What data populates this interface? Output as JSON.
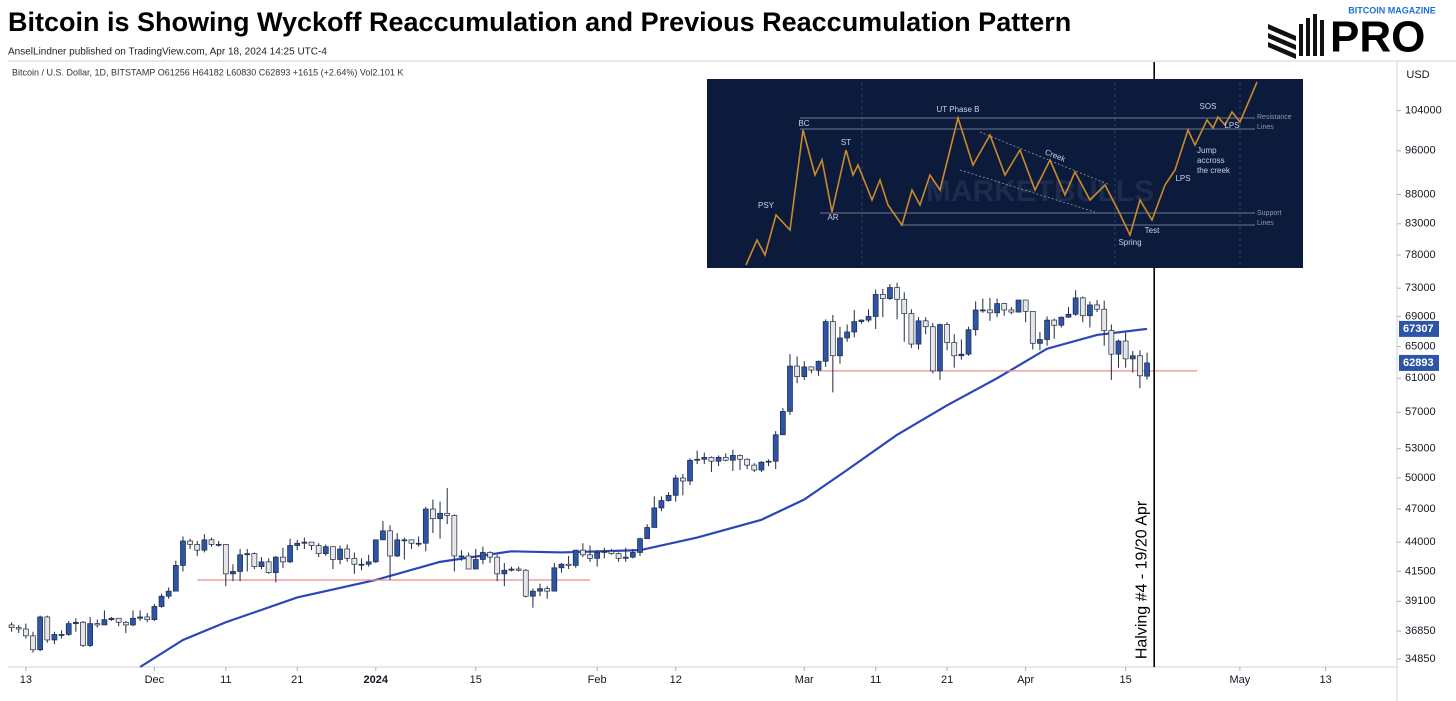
{
  "chart_data": {
    "type": "candlestick",
    "title": "Bitcoin is Showing Wyckoff Reaccumulation and Previous Reaccumulation Pattern",
    "subtitle": "AnselLindner published on TradingView.com, Apr 18, 2024 14:25 UTC-4",
    "symbol_info": "Bitcoin / U.S. Dollar, 1D, BITSTAMP  O61256  H64182  L60830  C62893  +1615 (+2.64%)  Vol2.101 K",
    "currency": "USD",
    "logo": {
      "top": "BITCOIN MAGAZINE",
      "main": "PRO"
    },
    "log_scale": true,
    "grid": false,
    "up_color": "#2e54a6",
    "down_color": "#e6e6e6",
    "ylim": [
      34300,
      114600
    ],
    "yticks": [
      34850,
      36850,
      39100,
      41500,
      44000,
      47000,
      50000,
      53000,
      57000,
      61000,
      65000,
      69000,
      73000,
      78000,
      83000,
      88000,
      96000,
      104000
    ],
    "xlim": [
      -0.5,
      194
    ],
    "xticks": [
      {
        "value": 2,
        "label": "13"
      },
      {
        "value": 20,
        "label": "Dec"
      },
      {
        "value": 30,
        "label": "11"
      },
      {
        "value": 40,
        "label": "21"
      },
      {
        "value": 51,
        "label": "2024"
      },
      {
        "value": 65,
        "label": "15"
      },
      {
        "value": 82,
        "label": "Feb"
      },
      {
        "value": 93,
        "label": "12"
      },
      {
        "value": 111,
        "label": "Mar"
      },
      {
        "value": 121,
        "label": "11"
      },
      {
        "value": 131,
        "label": "21"
      },
      {
        "value": 142,
        "label": "Apr"
      },
      {
        "value": 156,
        "label": "15"
      },
      {
        "value": 172,
        "label": "May"
      },
      {
        "value": 184,
        "label": "13"
      }
    ],
    "ohlc": [
      [
        37300,
        37500,
        36800,
        37100
      ],
      [
        37100,
        37300,
        36700,
        37000
      ],
      [
        37000,
        37400,
        36300,
        36500
      ],
      [
        36500,
        36800,
        35300,
        35500
      ],
      [
        35500,
        38000,
        35400,
        37900
      ],
      [
        37900,
        38000,
        36000,
        36200
      ],
      [
        36200,
        36800,
        35900,
        36600
      ],
      [
        36600,
        36900,
        36300,
        36600
      ],
      [
        36600,
        37600,
        36500,
        37400
      ],
      [
        37400,
        37800,
        36800,
        37500
      ],
      [
        37500,
        37600,
        35700,
        35800
      ],
      [
        35800,
        37900,
        35700,
        37400
      ],
      [
        37400,
        37700,
        37100,
        37300
      ],
      [
        37300,
        38400,
        37300,
        37700
      ],
      [
        37700,
        37900,
        37600,
        37800
      ],
      [
        37800,
        37800,
        37200,
        37500
      ],
      [
        37500,
        37600,
        36700,
        37300
      ],
      [
        37300,
        38400,
        37200,
        37800
      ],
      [
        37800,
        38400,
        37600,
        37900
      ],
      [
        37900,
        38200,
        37500,
        37700
      ],
      [
        37700,
        38900,
        37600,
        38700
      ],
      [
        38700,
        39700,
        38600,
        39500
      ],
      [
        39500,
        40200,
        39300,
        39900
      ],
      [
        39900,
        42400,
        39900,
        42000
      ],
      [
        42000,
        44500,
        41500,
        44100
      ],
      [
        44100,
        44300,
        43400,
        43800
      ],
      [
        43800,
        44100,
        42800,
        43300
      ],
      [
        43300,
        44700,
        43100,
        44200
      ],
      [
        44200,
        44400,
        43600,
        43800
      ],
      [
        43800,
        44100,
        43600,
        43800
      ],
      [
        43800,
        43800,
        40300,
        41300
      ],
      [
        41300,
        42100,
        40700,
        41500
      ],
      [
        41500,
        43400,
        40700,
        42900
      ],
      [
        42900,
        43400,
        41500,
        43000
      ],
      [
        43000,
        43100,
        41700,
        41900
      ],
      [
        41900,
        42700,
        41700,
        42300
      ],
      [
        42300,
        42600,
        41300,
        41400
      ],
      [
        41400,
        42800,
        40600,
        42700
      ],
      [
        42700,
        43500,
        41800,
        42300
      ],
      [
        42300,
        44300,
        42200,
        43700
      ],
      [
        43700,
        44200,
        43300,
        43900
      ],
      [
        43900,
        44400,
        43400,
        44000
      ],
      [
        44000,
        44000,
        43300,
        43700
      ],
      [
        43700,
        43900,
        42700,
        43000
      ],
      [
        43000,
        43800,
        42800,
        43600
      ],
      [
        43600,
        43600,
        41700,
        42500
      ],
      [
        42500,
        43700,
        42100,
        43400
      ],
      [
        43400,
        43800,
        42300,
        42600
      ],
      [
        42600,
        43100,
        41300,
        42100
      ],
      [
        42100,
        42600,
        41600,
        42100
      ],
      [
        42100,
        42900,
        41900,
        42300
      ],
      [
        42300,
        44200,
        42200,
        44200
      ],
      [
        44200,
        45900,
        44200,
        45000
      ],
      [
        45000,
        45500,
        40800,
        42800
      ],
      [
        42800,
        44800,
        42700,
        44200
      ],
      [
        44200,
        44400,
        42500,
        44200
      ],
      [
        44200,
        44200,
        43400,
        43900
      ],
      [
        43900,
        44500,
        43600,
        43900
      ],
      [
        43900,
        47200,
        43200,
        47000
      ],
      [
        47000,
        47900,
        44800,
        46100
      ],
      [
        46100,
        47700,
        44300,
        46600
      ],
      [
        46600,
        49000,
        45600,
        46400
      ],
      [
        46400,
        46500,
        41500,
        42800
      ],
      [
        42800,
        43300,
        42400,
        42800
      ],
      [
        42800,
        43100,
        41700,
        41700
      ],
      [
        41700,
        43400,
        41700,
        42500
      ],
      [
        42500,
        43600,
        42100,
        43100
      ],
      [
        43100,
        43200,
        42200,
        42700
      ],
      [
        42700,
        42900,
        40700,
        41300
      ],
      [
        41300,
        42200,
        40300,
        41600
      ],
      [
        41600,
        41900,
        41500,
        41700
      ],
      [
        41700,
        41900,
        41500,
        41600
      ],
      [
        41600,
        41700,
        39400,
        39500
      ],
      [
        39500,
        40100,
        38600,
        39900
      ],
      [
        39900,
        40500,
        39500,
        40100
      ],
      [
        40100,
        40300,
        39300,
        39900
      ],
      [
        39900,
        42200,
        39900,
        41800
      ],
      [
        41800,
        42200,
        41400,
        42100
      ],
      [
        42100,
        42800,
        41700,
        42000
      ],
      [
        42000,
        43300,
        41800,
        43300
      ],
      [
        43300,
        43900,
        42700,
        42900
      ],
      [
        42900,
        43700,
        42300,
        42600
      ],
      [
        42600,
        43300,
        41900,
        43100
      ],
      [
        43100,
        43500,
        42600,
        43200
      ],
      [
        43200,
        43400,
        42900,
        43000
      ],
      [
        43000,
        43100,
        42300,
        42600
      ],
      [
        42600,
        43500,
        42300,
        42700
      ],
      [
        42700,
        43400,
        42600,
        43100
      ],
      [
        43100,
        44400,
        42800,
        44300
      ],
      [
        44300,
        45600,
        44300,
        45300
      ],
      [
        45300,
        48200,
        45300,
        47100
      ],
      [
        47100,
        48200,
        46800,
        47800
      ],
      [
        47800,
        48600,
        47700,
        48300
      ],
      [
        48300,
        50300,
        47700,
        50000
      ],
      [
        50000,
        50400,
        48300,
        49700
      ],
      [
        49700,
        52000,
        49300,
        51800
      ],
      [
        51800,
        52800,
        51400,
        51900
      ],
      [
        51900,
        52600,
        51400,
        52100
      ],
      [
        52100,
        52200,
        50600,
        51700
      ],
      [
        51700,
        52300,
        51200,
        52100
      ],
      [
        52100,
        52500,
        51700,
        51800
      ],
      [
        51800,
        52900,
        50700,
        52300
      ],
      [
        52300,
        52400,
        50800,
        51900
      ],
      [
        51900,
        52000,
        50900,
        51300
      ],
      [
        51300,
        51500,
        50600,
        50800
      ],
      [
        50800,
        51700,
        50600,
        51600
      ],
      [
        51600,
        51900,
        51200,
        51700
      ],
      [
        51700,
        54900,
        50900,
        54500
      ],
      [
        54500,
        57500,
        54500,
        57100
      ],
      [
        57100,
        64000,
        56700,
        62500
      ],
      [
        62500,
        63700,
        60400,
        61200
      ],
      [
        61200,
        63100,
        60800,
        62400
      ],
      [
        62400,
        62400,
        61600,
        62000
      ],
      [
        62000,
        63200,
        61300,
        63100
      ],
      [
        63100,
        68600,
        62400,
        68300
      ],
      [
        68300,
        69200,
        59300,
        63800
      ],
      [
        63800,
        67600,
        62800,
        66100
      ],
      [
        66100,
        67900,
        65600,
        66900
      ],
      [
        66900,
        69900,
        66200,
        68300
      ],
      [
        68300,
        68600,
        68000,
        68500
      ],
      [
        68500,
        70000,
        68200,
        69000
      ],
      [
        69000,
        72800,
        67300,
        72100
      ],
      [
        72100,
        72900,
        68900,
        71500
      ],
      [
        71500,
        73600,
        71300,
        73100
      ],
      [
        73100,
        73800,
        68600,
        71400
      ],
      [
        71400,
        72400,
        65600,
        69400
      ],
      [
        69400,
        70000,
        64800,
        65300
      ],
      [
        65300,
        68900,
        64600,
        68400
      ],
      [
        68400,
        68900,
        66600,
        67600
      ],
      [
        67600,
        68100,
        61600,
        61900
      ],
      [
        61900,
        68000,
        60800,
        67900
      ],
      [
        67900,
        68200,
        64500,
        65500
      ],
      [
        65500,
        66600,
        62300,
        63800
      ],
      [
        63800,
        65900,
        63300,
        64000
      ],
      [
        64000,
        67600,
        63800,
        67200
      ],
      [
        67200,
        71100,
        66400,
        69900
      ],
      [
        69900,
        71500,
        69500,
        69900
      ],
      [
        69900,
        71600,
        68400,
        69500
      ],
      [
        69500,
        71500,
        68900,
        70800
      ],
      [
        70800,
        70900,
        69100,
        69900
      ],
      [
        69900,
        70300,
        69300,
        69600
      ],
      [
        69600,
        71300,
        69600,
        71300
      ],
      [
        71300,
        71300,
        68200,
        69700
      ],
      [
        69700,
        69700,
        64600,
        65400
      ],
      [
        65400,
        66900,
        64500,
        65900
      ],
      [
        65900,
        69000,
        65100,
        68500
      ],
      [
        68500,
        68700,
        66000,
        67800
      ],
      [
        67800,
        69000,
        67500,
        68900
      ],
      [
        68900,
        70300,
        68800,
        69300
      ],
      [
        69300,
        72700,
        69100,
        71600
      ],
      [
        71600,
        71800,
        68200,
        69100
      ],
      [
        69100,
        71100,
        67500,
        70600
      ],
      [
        70600,
        71300,
        69600,
        70000
      ],
      [
        70000,
        71200,
        65100,
        67100
      ],
      [
        67100,
        67900,
        60800,
        64000
      ],
      [
        64000,
        65900,
        62300,
        65700
      ],
      [
        65700,
        66800,
        62300,
        63400
      ],
      [
        63400,
        64400,
        61700,
        63800
      ],
      [
        63800,
        64500,
        59800,
        61300
      ],
      [
        61256,
        64182,
        60830,
        62893
      ]
    ],
    "moving_average": {
      "color": "#2a46b8",
      "x": [
        18,
        24,
        30,
        40,
        51,
        60,
        70,
        77,
        88,
        96,
        105,
        111,
        117,
        124,
        131,
        138,
        145,
        152,
        159
      ],
      "values": [
        34300,
        36200,
        37500,
        39400,
        40800,
        42300,
        43200,
        43100,
        43300,
        44400,
        46000,
        47900,
        50800,
        54500,
        57800,
        61000,
        64700,
        66500,
        67307
      ]
    },
    "levels": [
      {
        "value": 40800,
        "x": [
          26,
          81
        ],
        "color": "#f08c8c"
      },
      {
        "value": 61900,
        "x": [
          112.7,
          166
        ],
        "color": "#f08c8c"
      }
    ],
    "price_tags": [
      {
        "value": 67307,
        "color": "#2e54a6"
      },
      {
        "value": 62893,
        "color": "#2e54a6"
      }
    ],
    "vline": {
      "x": 160,
      "label": "Halving #4 - 19/20 Apr"
    },
    "inset": {
      "watermark": "MARKETBULLS",
      "psy": "PSY",
      "bc": "BC",
      "st": "ST",
      "ar": "AR",
      "ut": "UT Phase B",
      "creek": "Creek",
      "sos": "SOS",
      "lps_top": "LPS",
      "lps": "LPS",
      "jump": [
        "Jump",
        "accross",
        "the creek"
      ],
      "spring": "Spring",
      "test": "Test",
      "resistance": [
        "Resistance",
        "Lines"
      ],
      "support": [
        "Support",
        "Lines"
      ]
    }
  }
}
